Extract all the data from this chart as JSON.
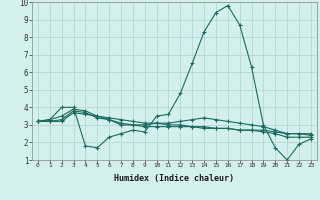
{
  "xlabel": "Humidex (Indice chaleur)",
  "xlim": [
    -0.5,
    23.5
  ],
  "ylim": [
    1,
    10
  ],
  "yticks": [
    1,
    2,
    3,
    4,
    5,
    6,
    7,
    8,
    9,
    10
  ],
  "xticks": [
    0,
    1,
    2,
    3,
    4,
    5,
    6,
    7,
    8,
    9,
    10,
    11,
    12,
    13,
    14,
    15,
    16,
    17,
    18,
    19,
    20,
    21,
    22,
    23
  ],
  "background_color": "#d4f0ed",
  "grid_color": "#b8d8d4",
  "line_color": "#1a6b5e",
  "lines": [
    [
      3.2,
      3.3,
      4.0,
      4.0,
      1.8,
      1.7,
      2.3,
      2.5,
      2.7,
      2.6,
      3.5,
      3.6,
      4.8,
      6.5,
      8.3,
      9.4,
      9.8,
      8.7,
      6.3,
      3.0,
      1.7,
      1.0,
      1.9,
      2.2
    ],
    [
      3.2,
      3.2,
      3.2,
      3.7,
      3.6,
      3.5,
      3.4,
      3.3,
      3.2,
      3.1,
      3.1,
      3.0,
      3.0,
      2.9,
      2.8,
      2.8,
      2.8,
      2.7,
      2.7,
      2.7,
      2.6,
      2.5,
      2.5,
      2.4
    ],
    [
      3.2,
      3.2,
      3.3,
      3.8,
      3.7,
      3.4,
      3.3,
      3.1,
      3.0,
      2.9,
      2.9,
      2.9,
      2.9,
      2.9,
      2.9,
      2.8,
      2.8,
      2.7,
      2.7,
      2.6,
      2.5,
      2.3,
      2.3,
      2.3
    ],
    [
      3.2,
      3.3,
      3.5,
      3.9,
      3.8,
      3.5,
      3.3,
      3.0,
      3.0,
      3.0,
      3.1,
      3.1,
      3.2,
      3.3,
      3.4,
      3.3,
      3.2,
      3.1,
      3.0,
      2.9,
      2.7,
      2.5,
      2.5,
      2.5
    ]
  ]
}
